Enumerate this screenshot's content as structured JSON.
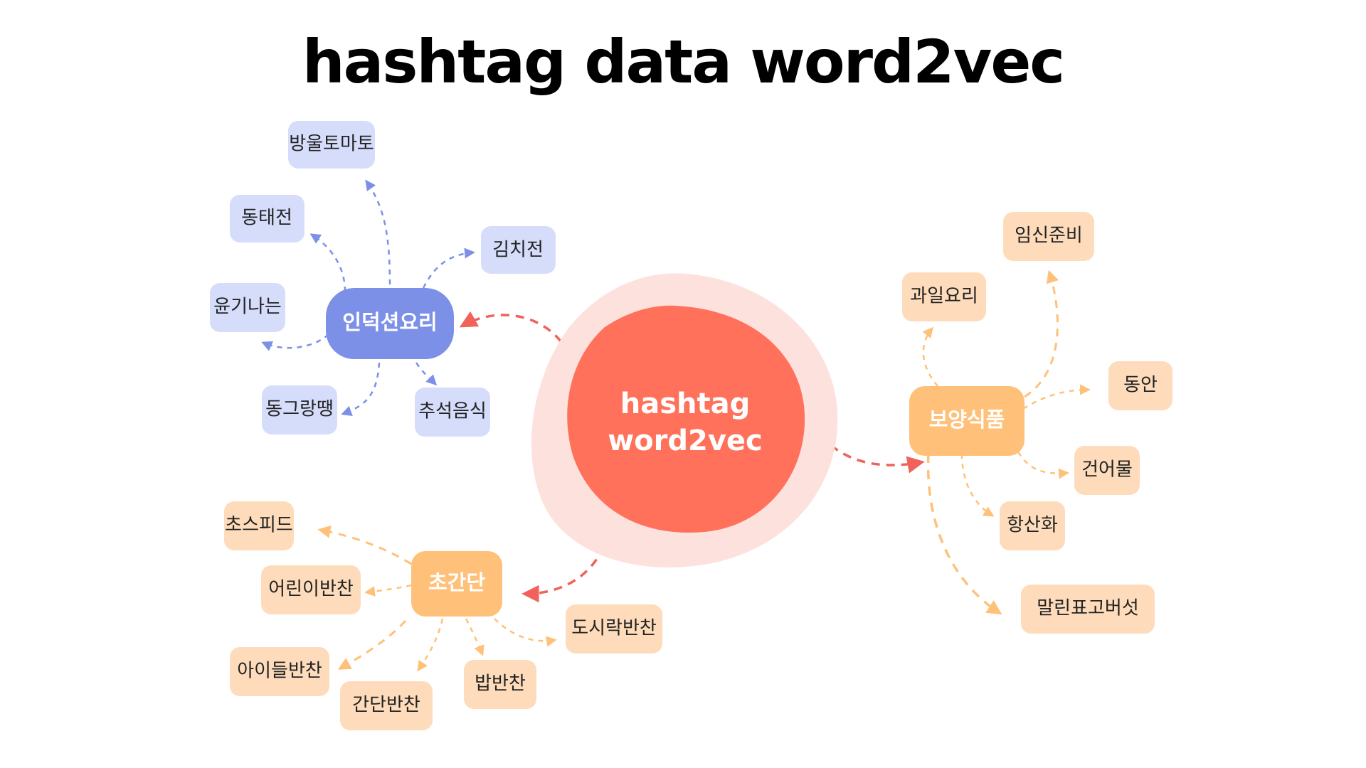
{
  "title": "hashtag data word2vec",
  "colors": {
    "center_fill": "#ff715b",
    "center_halo": "#fde1dd",
    "hub_blue": "#7d90e8",
    "leaf_blue": "#d6ddfb",
    "hub_orange": "#ffc17a",
    "leaf_orange": "#fedcbb",
    "connector_red": "#f0625a",
    "connector_blue": "#7d90e8",
    "connector_orange": "#ffc17a"
  },
  "center": {
    "line1": "hashtag",
    "line2": "word2vec"
  },
  "hubs": {
    "induction": {
      "label": "인덕션요리",
      "leaves": [
        "방울토마토",
        "동태전",
        "김치전",
        "윤기나는",
        "동그랑땡",
        "추석음식"
      ]
    },
    "health": {
      "label": "보양식품",
      "leaves": [
        "임신준비",
        "과일요리",
        "동안",
        "건어물",
        "항산화",
        "말린표고버섯"
      ]
    },
    "simple": {
      "label": "초간단",
      "leaves": [
        "초스피드",
        "어린이반찬",
        "아이들반찬",
        "간단반찬",
        "밥반찬",
        "도시락반찬"
      ]
    }
  }
}
